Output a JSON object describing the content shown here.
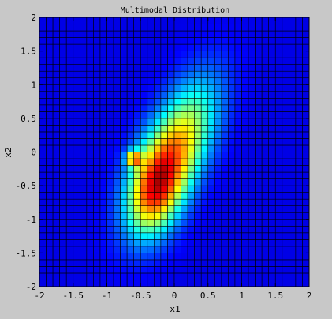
{
  "chart_data": {
    "type": "heatmap",
    "title": "Multimodal Distribution",
    "xlabel": "x1",
    "ylabel": "x2",
    "xlim": [
      -2,
      2
    ],
    "ylim": [
      -2,
      2
    ],
    "x_ticks": [
      -2,
      -1.5,
      -1,
      -0.5,
      0,
      0.5,
      1,
      1.5,
      2
    ],
    "y_ticks": [
      -2,
      -1.5,
      -1,
      -0.5,
      0,
      0.5,
      1,
      1.5,
      2
    ],
    "x_tick_labels": [
      "-2",
      "-1.5",
      "-1",
      "-0.5",
      "0",
      "0.5",
      "1",
      "1.5",
      "2"
    ],
    "y_tick_labels": [
      "-2",
      "-1.5",
      "-1",
      "-0.5",
      "0",
      "0.5",
      "1",
      "1.5",
      "2"
    ],
    "grid": true,
    "grid_size": 40,
    "colormap": "jet",
    "components": [
      {
        "mean": [
          0.0,
          0.0
        ],
        "sd": [
          0.42,
          0.7
        ],
        "rho": 0.6,
        "weight": 1.0
      },
      {
        "mean": [
          -0.6,
          -0.1
        ],
        "sd": [
          0.08,
          0.08
        ],
        "rho": 0.0,
        "weight": 0.85
      },
      {
        "mean": [
          -0.3,
          -0.6
        ],
        "sd": [
          0.28,
          0.45
        ],
        "rho": 0.2,
        "weight": 0.7
      }
    ]
  },
  "colors": {
    "background": "#c8c8c8",
    "cell_border": "#000000",
    "axes": "#000000"
  }
}
